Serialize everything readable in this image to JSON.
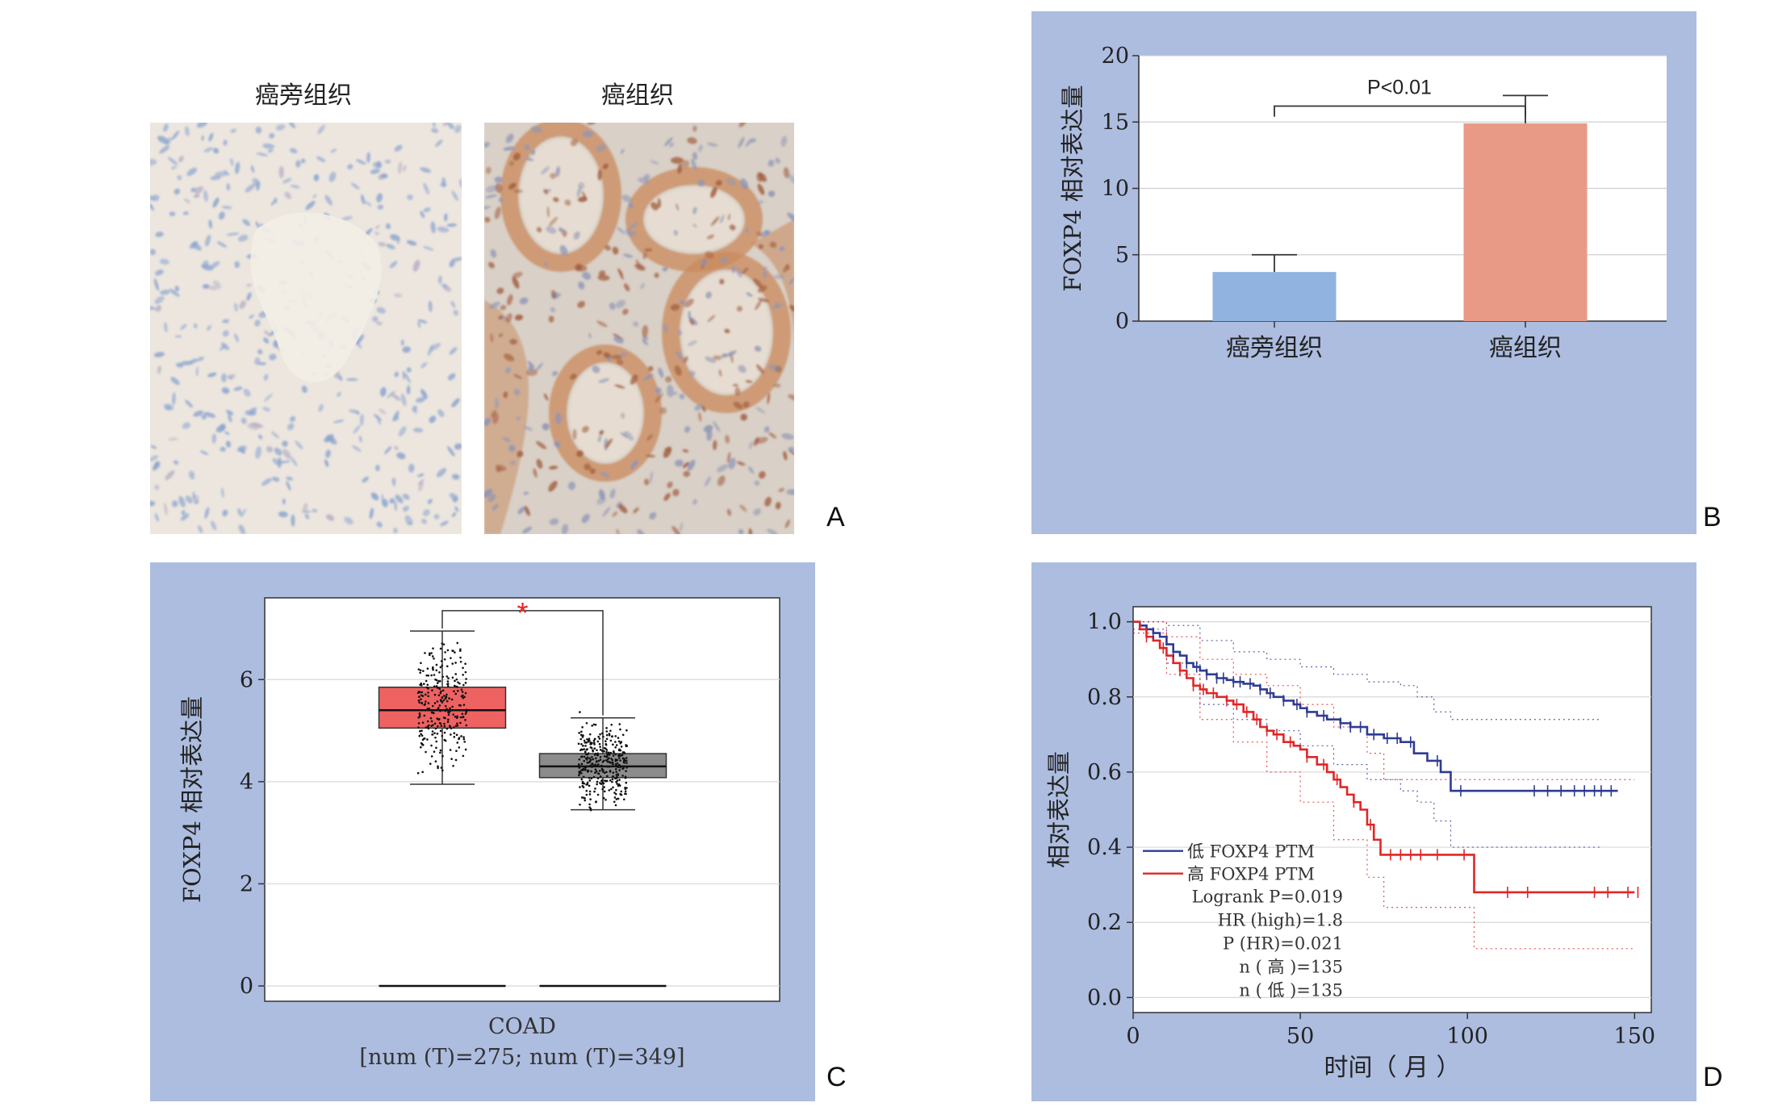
{
  "panelA": {
    "label": "A",
    "images": [
      {
        "title": "癌旁组织",
        "stain": "blue-hematoxylin"
      },
      {
        "title": "癌组织",
        "stain": "brown-positive"
      }
    ]
  },
  "panelB": {
    "label": "B",
    "pvalue": "P<0.01"
  },
  "panelC": {
    "label": "C",
    "xcat": "COAD",
    "subtitle": "[num (T)=275; num (T)=349]",
    "sig": "*"
  },
  "panelD": {
    "label": "D"
  },
  "colors": {
    "panel_bg": "#adbde0",
    "bar_adjacent": "#90b3df",
    "bar_tumor": "#e99a86",
    "box_tumor": "#ee6262",
    "box_normal": "#8c8c8c",
    "km_low": "#2f3b93",
    "km_high": "#e02626"
  },
  "chart_data": [
    {
      "id": "B",
      "type": "bar",
      "categories": [
        "癌旁组织",
        "癌组织"
      ],
      "values": [
        3.7,
        14.9
      ],
      "error": [
        1.3,
        2.1
      ],
      "ylabel": "FOXP4 相对表达量",
      "ylim": [
        0,
        20
      ],
      "yticks": [
        "0",
        "5",
        "10",
        "15",
        "20"
      ],
      "grid": true
    },
    {
      "id": "C",
      "type": "box",
      "categories": [
        "COAD"
      ],
      "series": [
        {
          "values": {
            "whisker_low": 3.95,
            "q1": 5.05,
            "median": 5.4,
            "q3": 5.85,
            "whisker_high": 6.95
          },
          "n": 275
        },
        {
          "values": {
            "whisker_low": 3.45,
            "q1": 4.08,
            "median": 4.3,
            "q3": 4.55,
            "whisker_high": 5.25
          },
          "n": 349
        }
      ],
      "ylabel": "FOXP4 相对表达量",
      "ylim": [
        -0.3,
        7.6
      ],
      "yticks": [
        "0",
        "2",
        "4",
        "6"
      ],
      "grid": true
    },
    {
      "id": "D",
      "type": "line",
      "xlabel": "时间（ 月 ）",
      "ylabel": "相对表达量",
      "xlim": [
        0,
        155
      ],
      "ylim": [
        -0.04,
        1.04
      ],
      "xticks": [
        "0",
        "50",
        "100",
        "150"
      ],
      "yticks": [
        "0.0",
        "0.2",
        "0.4",
        "0.6",
        "0.8",
        "1.0"
      ],
      "legend": [
        "低 FOXP4 PTM",
        "高 FOXP4 PTM"
      ],
      "stats": [
        "Logrank P=0.019",
        "HR (high)=1.8",
        "P (HR)=0.021",
        "n ( 高 )=135",
        "n ( 低 )=135"
      ],
      "series": [
        {
          "name": "低 FOXP4 PTM",
          "x": [
            0,
            2,
            4,
            6,
            8,
            10,
            12,
            14,
            16,
            18,
            20,
            22,
            25,
            28,
            30,
            33,
            36,
            38,
            40,
            42,
            45,
            48,
            50,
            52,
            55,
            58,
            62,
            65,
            70,
            75,
            80,
            84,
            88,
            92,
            95,
            100,
            110,
            120,
            130,
            140,
            145
          ],
          "y": [
            1.0,
            0.99,
            0.98,
            0.97,
            0.96,
            0.94,
            0.92,
            0.91,
            0.89,
            0.88,
            0.87,
            0.86,
            0.85,
            0.845,
            0.84,
            0.835,
            0.83,
            0.82,
            0.81,
            0.8,
            0.79,
            0.78,
            0.77,
            0.76,
            0.75,
            0.74,
            0.73,
            0.72,
            0.7,
            0.69,
            0.68,
            0.65,
            0.63,
            0.6,
            0.55,
            0.55,
            0.55,
            0.55,
            0.55,
            0.55,
            0.55
          ]
        },
        {
          "name": "高 FOXP4 PTM",
          "x": [
            0,
            2,
            4,
            6,
            8,
            10,
            12,
            14,
            16,
            18,
            20,
            22,
            25,
            28,
            30,
            33,
            36,
            38,
            40,
            42,
            45,
            48,
            50,
            52,
            55,
            58,
            60,
            62,
            64,
            66,
            68,
            70,
            72,
            74,
            80,
            90,
            95,
            100,
            102,
            110,
            120,
            130,
            140,
            150
          ],
          "y": [
            1.0,
            0.98,
            0.96,
            0.95,
            0.93,
            0.91,
            0.89,
            0.87,
            0.85,
            0.83,
            0.82,
            0.81,
            0.8,
            0.79,
            0.78,
            0.76,
            0.74,
            0.72,
            0.71,
            0.7,
            0.68,
            0.67,
            0.66,
            0.64,
            0.62,
            0.6,
            0.58,
            0.56,
            0.54,
            0.52,
            0.5,
            0.46,
            0.42,
            0.38,
            0.38,
            0.38,
            0.38,
            0.38,
            0.28,
            0.28,
            0.28,
            0.28,
            0.28,
            0.28
          ]
        },
        {
          "role": "ci",
          "of": "低 FOXP4 PTM",
          "bound": "upper",
          "x": [
            0,
            10,
            20,
            30,
            40,
            50,
            60,
            70,
            80,
            85,
            90,
            95,
            100,
            140
          ],
          "y": [
            1.0,
            0.99,
            0.95,
            0.92,
            0.9,
            0.88,
            0.86,
            0.84,
            0.83,
            0.8,
            0.76,
            0.74,
            0.74,
            0.74
          ]
        },
        {
          "role": "ci",
          "of": "低 FOXP4 PTM",
          "bound": "lower",
          "x": [
            0,
            10,
            20,
            30,
            40,
            50,
            60,
            70,
            80,
            85,
            90,
            95,
            100,
            140
          ],
          "y": [
            0.98,
            0.89,
            0.78,
            0.74,
            0.71,
            0.67,
            0.62,
            0.58,
            0.55,
            0.52,
            0.47,
            0.4,
            0.4,
            0.4
          ]
        },
        {
          "role": "ci",
          "of": "高 FOXP4 PTM",
          "bound": "upper",
          "x": [
            0,
            10,
            20,
            30,
            40,
            50,
            60,
            70,
            75,
            95,
            100,
            102,
            150
          ],
          "y": [
            1.0,
            0.96,
            0.9,
            0.86,
            0.83,
            0.78,
            0.72,
            0.65,
            0.58,
            0.58,
            0.58,
            0.58,
            0.58
          ]
        },
        {
          "role": "ci",
          "of": "高 FOXP4 PTM",
          "bound": "lower",
          "x": [
            0,
            10,
            20,
            30,
            40,
            50,
            60,
            70,
            75,
            95,
            100,
            102,
            150
          ],
          "y": [
            0.97,
            0.86,
            0.74,
            0.68,
            0.6,
            0.52,
            0.42,
            0.32,
            0.24,
            0.24,
            0.24,
            0.13,
            0.13
          ]
        }
      ],
      "censor_low_x": [
        6,
        12,
        16,
        19,
        22,
        25,
        27,
        30,
        32,
        35,
        38,
        41,
        45,
        49,
        52,
        57,
        62,
        65,
        68,
        72,
        76,
        79,
        83,
        91,
        98,
        120,
        124,
        128,
        132,
        135,
        138,
        140,
        143
      ],
      "censor_high_x": [
        4,
        9,
        14,
        18,
        21,
        24,
        28,
        31,
        34,
        37,
        40,
        43,
        47,
        52,
        57,
        61,
        66,
        71,
        77,
        80,
        83,
        86,
        91,
        99,
        112,
        118,
        138,
        142,
        148,
        151
      ]
    }
  ]
}
